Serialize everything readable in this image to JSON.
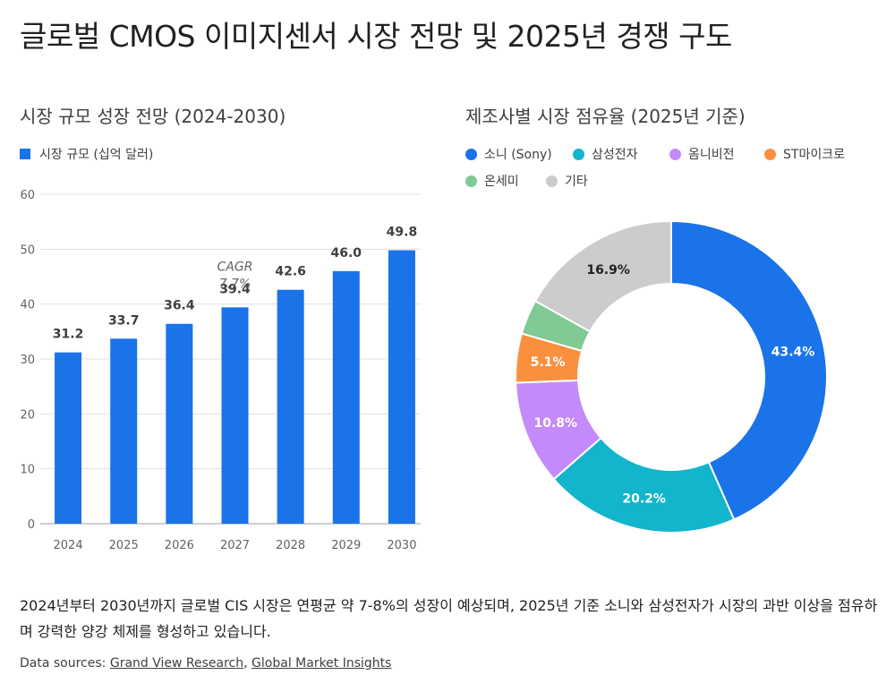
{
  "page": {
    "title": "글로벌 CMOS 이미지센서 시장 전망 및 2025년 경쟁 구도",
    "summary": "2024년부터 2030년까지 글로벌 CIS 시장은 연평균 약 7-8%의 성장이 예상되며, 2025년 기준 소니와 삼성전자가 시장의 과반 이상을 점유하며 강력한 양강 체제를 형성하고 있습니다.",
    "sources_prefix": "Data sources: ",
    "sources": [
      "Grand View Research",
      "Global Market Insights"
    ],
    "sources_separator": ", "
  },
  "chart_data": [
    {
      "type": "bar",
      "title": "시장 규모 성장 전망 (2024-2030)",
      "categories": [
        "2024",
        "2025",
        "2026",
        "2027",
        "2028",
        "2029",
        "2030"
      ],
      "series": [
        {
          "name": "시장 규모 (십억 달러)",
          "values": [
            31.2,
            33.7,
            36.4,
            39.4,
            42.6,
            46.0,
            49.8
          ],
          "color": "#1a73e8"
        }
      ],
      "data_labels": [
        "31.2",
        "33.7",
        "36.4",
        "39.4",
        "42.6",
        "46.0",
        "49.8"
      ],
      "ylim": [
        0,
        60
      ],
      "yticks": [
        0,
        10,
        20,
        30,
        40,
        50,
        60
      ],
      "grid": true,
      "legend": "top-left",
      "annotation": {
        "category": "2027",
        "lines": [
          "CAGR",
          "7.7%"
        ]
      }
    },
    {
      "type": "pie",
      "donut": true,
      "title": "제조사별 시장 점유율 (2025년 기준)",
      "legend": "top",
      "slices": [
        {
          "label": "소니 (Sony)",
          "value": 43.4,
          "display": "43.4%",
          "color": "#1a73e8"
        },
        {
          "label": "삼성전자",
          "value": 20.2,
          "display": "20.2%",
          "color": "#12b5cb"
        },
        {
          "label": "옴니비전",
          "value": 10.8,
          "display": "10.8%",
          "color": "#c58af9"
        },
        {
          "label": "ST마이크로",
          "value": 5.1,
          "display": "5.1%",
          "color": "#fa903e"
        },
        {
          "label": "온세미",
          "value": 3.6,
          "display": "",
          "color": "#81c995"
        },
        {
          "label": "기타",
          "value": 16.9,
          "display": "16.9%",
          "color": "#cccccc"
        }
      ]
    }
  ]
}
